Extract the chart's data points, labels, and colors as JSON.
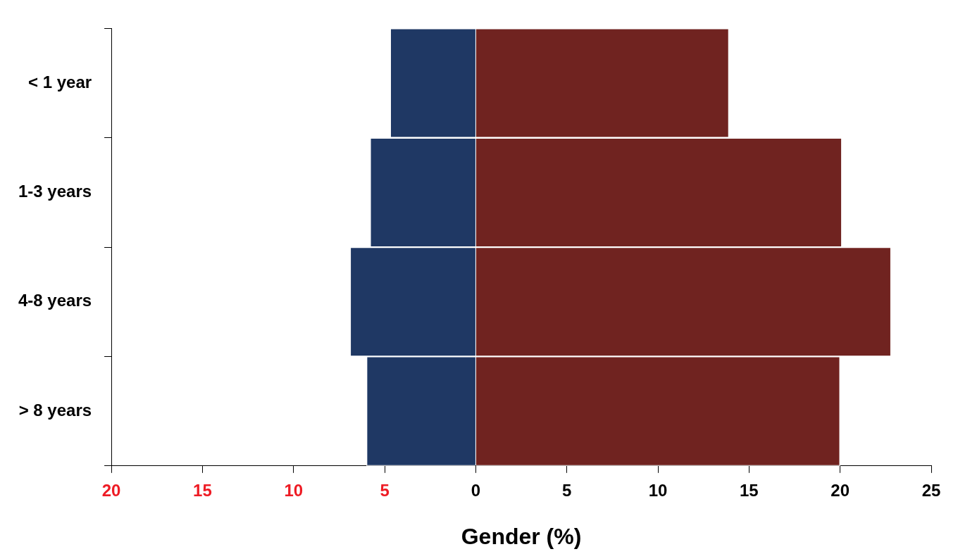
{
  "chart_data": {
    "type": "bar",
    "orientation": "horizontal",
    "stacked": true,
    "xlabel": "Gender (%)",
    "categories": [
      "< 1 year",
      "1-3 years",
      "4-8 years",
      "> 8 years"
    ],
    "series": [
      {
        "color": "#1f3864",
        "values": [
          -4.7,
          -5.8,
          -6.9,
          -6.0
        ]
      },
      {
        "color": "#702320",
        "values": [
          13.9,
          20.1,
          22.8,
          20.0
        ]
      }
    ],
    "xlim": [
      -20,
      25
    ],
    "xticks": [
      {
        "value": -20,
        "label": "20"
      },
      {
        "value": -15,
        "label": "15"
      },
      {
        "value": -10,
        "label": "10"
      },
      {
        "value": -5,
        "label": "5"
      },
      0,
      5,
      10,
      15,
      20,
      25
    ],
    "grid": false,
    "legend": false
  }
}
